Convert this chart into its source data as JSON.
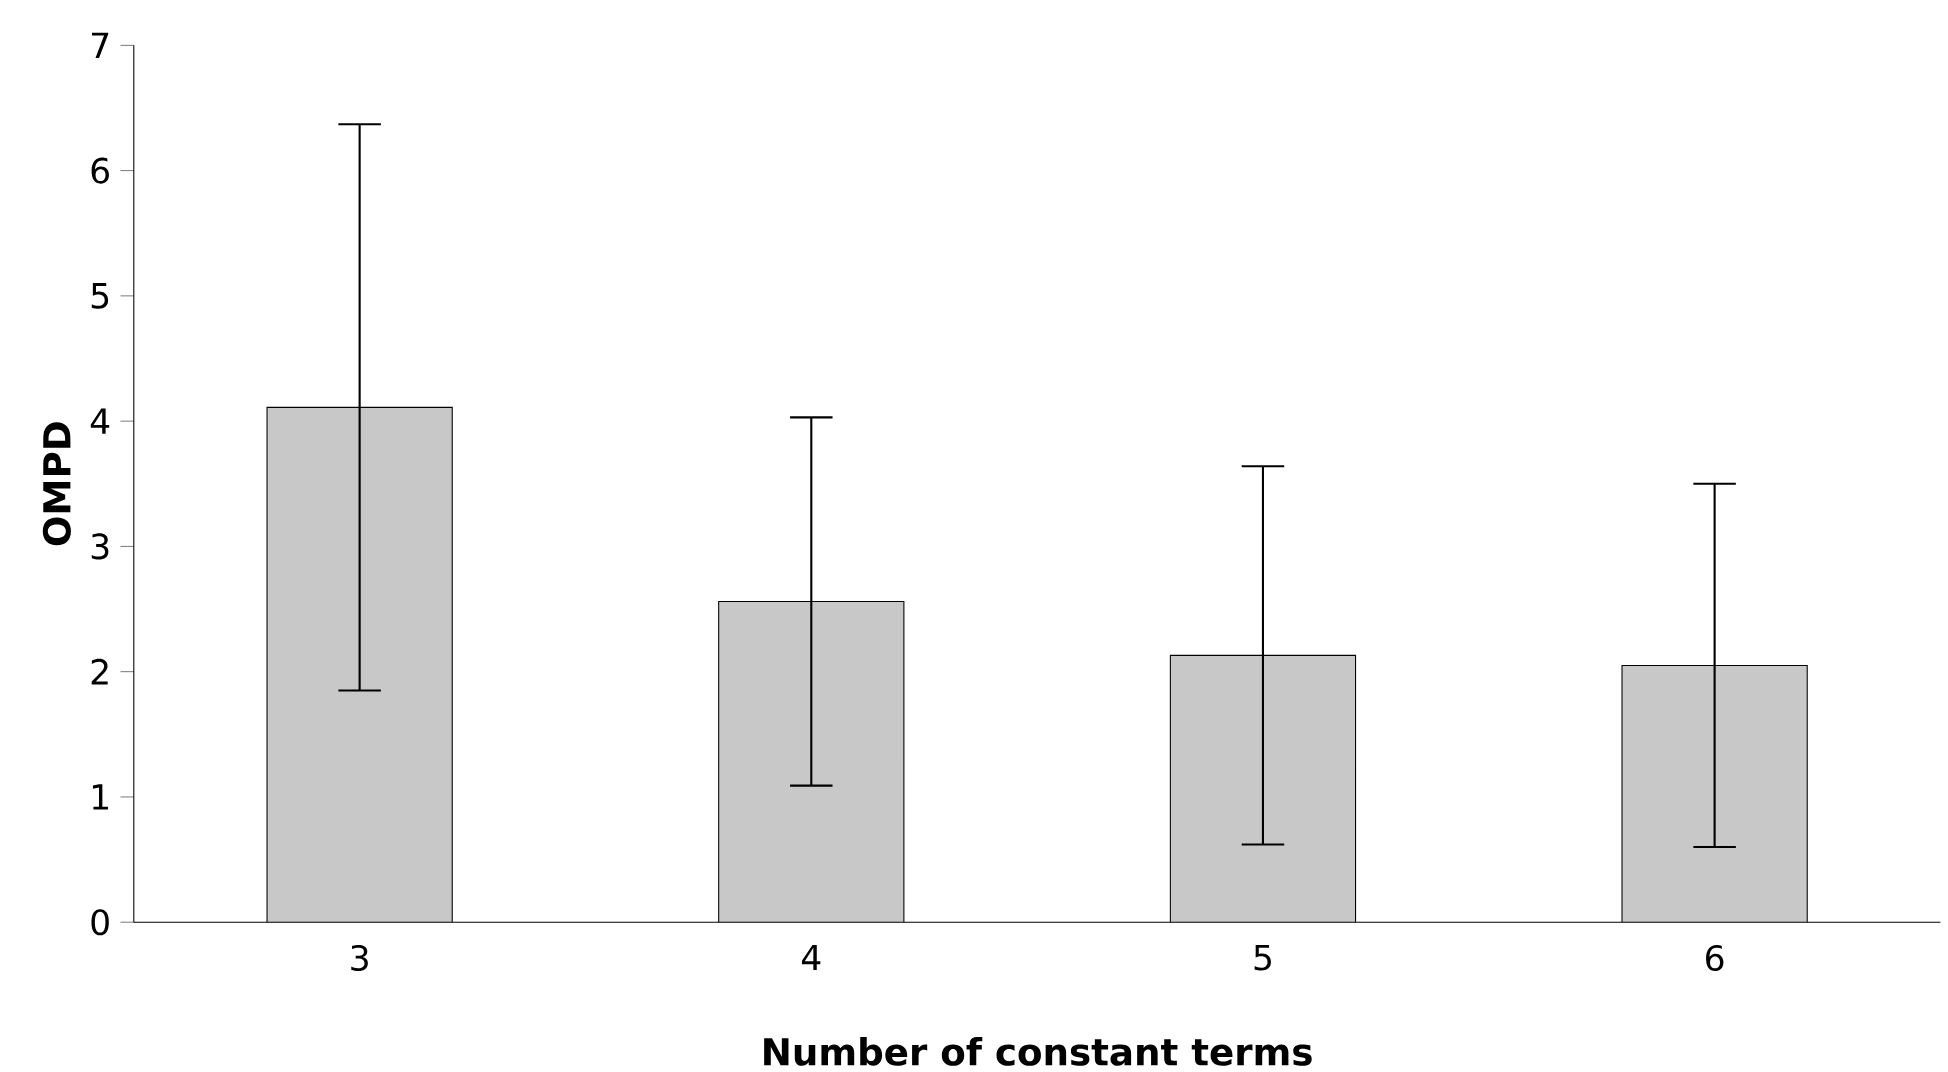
{
  "chart_data": {
    "type": "bar",
    "xlabel": "Number of constant terms",
    "ylabel": "OMPD",
    "categories": [
      "3",
      "4",
      "5",
      "6"
    ],
    "values": [
      4.11,
      2.56,
      2.13,
      2.05
    ],
    "errors": [
      2.26,
      1.47,
      1.51,
      1.45
    ],
    "color": "#c8c8c8",
    "ylim": [
      0,
      7
    ],
    "yticks": [
      0,
      1,
      2,
      3,
      4,
      5,
      6,
      7
    ],
    "grid": false
  }
}
